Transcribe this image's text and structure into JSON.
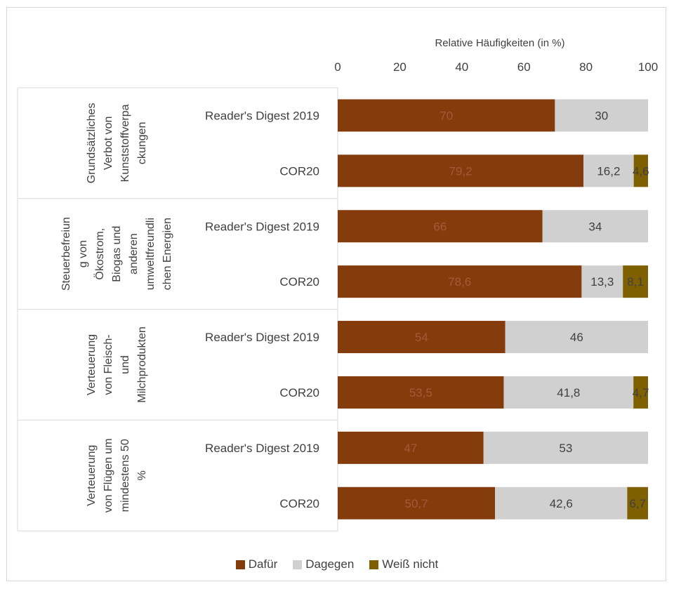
{
  "colors": {
    "dafuer": "#843C0C",
    "dagegen": "#D0D0D0",
    "weiss_nicht": "#7F6000",
    "axis_text": "#404040",
    "grid": "#d9d9d9"
  },
  "chart_data": {
    "type": "bar",
    "orientation": "horizontal",
    "stacked": true,
    "xlabel": "Relative Häufigkeiten (in %)",
    "xlim": [
      0,
      100
    ],
    "xticks": [
      0,
      20,
      40,
      60,
      80,
      100
    ],
    "groups": [
      {
        "label": "Grundsätzliches Verbot von Kunststoffverpackungen",
        "label_lines": [
          "Grundsätzliches",
          "Verbot von",
          "Kunststoffverpa",
          "ckungen"
        ]
      },
      {
        "label": "Steuerbefreiung von Ökostrom, Biogas und anderen umweltfreundlichen Energien",
        "label_lines": [
          "Steuerbefreiun",
          "g von",
          "Ökostrom,",
          "Biogas und",
          "anderen",
          "umweltfreundli",
          "chen Energien"
        ]
      },
      {
        "label": "Verteuerung von Fleisch- und Milchprodukten",
        "label_lines": [
          "Verteuerung",
          "von Fleisch-",
          "und",
          "Milchprodukten"
        ]
      },
      {
        "label": "Verteuerung von Flügen um mindestens 50 %",
        "label_lines": [
          "Verteuerung",
          "von Flügen um",
          "mindestens 50",
          "%"
        ]
      }
    ],
    "categories": [
      "Reader's Digest 2019",
      "COR20",
      "Reader's Digest 2019",
      "COR20",
      "Reader's Digest 2019",
      "COR20",
      "Reader's Digest 2019",
      "COR20"
    ],
    "category_groups": [
      0,
      0,
      1,
      1,
      2,
      2,
      3,
      3
    ],
    "series": [
      {
        "name": "Dafür",
        "values": [
          70,
          79.2,
          66,
          78.6,
          54,
          53.5,
          47,
          50.7
        ],
        "labels": [
          "70",
          "79,2",
          "66",
          "78,6",
          "54",
          "53,5",
          "47",
          "50,7"
        ]
      },
      {
        "name": "Dagegen",
        "values": [
          30,
          16.2,
          34,
          13.3,
          46,
          41.8,
          53,
          42.6
        ],
        "labels": [
          "30",
          "16,2",
          "34",
          "13,3",
          "46",
          "41,8",
          "53",
          "42,6"
        ]
      },
      {
        "name": "Weiß nicht",
        "values": [
          0,
          4.6,
          0,
          8.1,
          0,
          4.7,
          0,
          6.7
        ],
        "labels": [
          "",
          "4,6",
          "",
          "8,1",
          "",
          "4,7",
          "",
          "6,7"
        ]
      }
    ],
    "legend_position": "bottom",
    "grid": false
  }
}
